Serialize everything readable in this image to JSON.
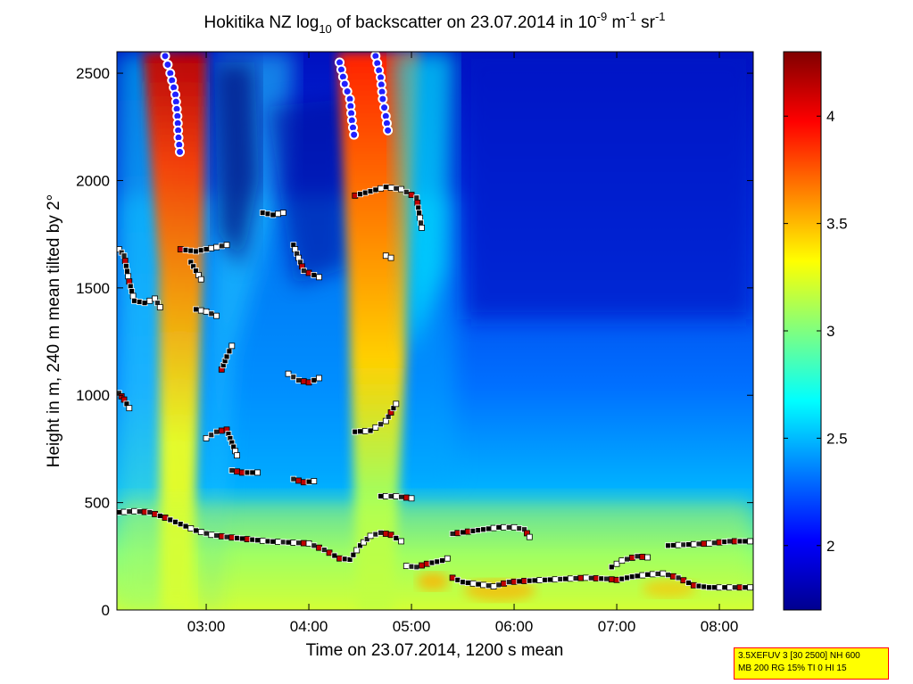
{
  "chart_data": {
    "type": "heatmap",
    "title": {
      "pre": "Hokitika NZ log",
      "sub": "10",
      "mid": " of backscatter on 23.07.2014 in 10",
      "sup1": "-9",
      "unit1": " m",
      "sup2": "-1",
      "unit2": " sr",
      "sup3": "-1"
    },
    "xlabel": "Time on 23.07.2014, 1200 s mean",
    "ylabel": "Height in m, 240 m mean tilted by 2°",
    "x_ticks": [
      "03:00",
      "04:00",
      "05:00",
      "06:00",
      "07:00",
      "08:00"
    ],
    "y_ticks": [
      "0",
      "500",
      "1000",
      "1500",
      "2000",
      "2500"
    ],
    "y_tick_values": [
      0,
      500,
      1000,
      1500,
      2000,
      2500
    ],
    "xlim_hours": [
      2.13,
      8.33
    ],
    "ylim": [
      0,
      2600
    ],
    "colorbar": {
      "range": [
        1.7,
        4.3
      ],
      "ticks": [
        "2",
        "2.5",
        "3",
        "3.5",
        "4"
      ],
      "tick_values": [
        2,
        2.5,
        3,
        3.5,
        4
      ],
      "colormap": "jet"
    },
    "layers": [
      {
        "name": "",
        "points": [
          [
            2.15,
            455
          ],
          [
            2.3,
            460
          ],
          [
            2.45,
            455
          ],
          [
            2.6,
            430
          ],
          [
            2.75,
            400
          ],
          [
            2.9,
            370
          ],
          [
            3.05,
            350
          ],
          [
            3.2,
            340
          ],
          [
            3.4,
            330
          ],
          [
            3.6,
            320
          ],
          [
            3.8,
            315
          ],
          [
            4.0,
            310
          ],
          [
            4.15,
            280
          ],
          [
            4.3,
            240
          ],
          [
            4.4,
            235
          ],
          [
            4.5,
            300
          ],
          [
            4.6,
            345
          ],
          [
            4.7,
            360
          ],
          [
            4.8,
            350
          ],
          [
            4.9,
            320
          ]
        ]
      },
      {
        "name": "",
        "points": [
          [
            4.95,
            205
          ],
          [
            5.05,
            200
          ],
          [
            5.15,
            215
          ],
          [
            5.3,
            230
          ],
          [
            5.35,
            240
          ]
        ]
      },
      {
        "name": "",
        "points": [
          [
            5.4,
            355
          ],
          [
            5.55,
            365
          ],
          [
            5.7,
            375
          ],
          [
            5.85,
            385
          ],
          [
            6.0,
            385
          ],
          [
            6.1,
            375
          ],
          [
            6.15,
            340
          ]
        ]
      },
      {
        "name": "",
        "points": [
          [
            5.4,
            150
          ],
          [
            5.5,
            130
          ],
          [
            5.65,
            120
          ],
          [
            5.8,
            110
          ],
          [
            5.95,
            130
          ],
          [
            6.1,
            135
          ],
          [
            6.3,
            140
          ],
          [
            6.5,
            145
          ],
          [
            6.7,
            150
          ],
          [
            6.9,
            145
          ],
          [
            7.0,
            140
          ],
          [
            7.15,
            155
          ],
          [
            7.3,
            165
          ],
          [
            7.45,
            170
          ],
          [
            7.6,
            150
          ],
          [
            7.75,
            115
          ],
          [
            7.9,
            105
          ],
          [
            8.05,
            105
          ],
          [
            8.3,
            105
          ]
        ]
      },
      {
        "name": "",
        "points": [
          [
            7.5,
            300
          ],
          [
            7.7,
            305
          ],
          [
            7.9,
            310
          ],
          [
            8.1,
            320
          ],
          [
            8.3,
            320
          ]
        ]
      },
      {
        "name": "",
        "points": [
          [
            6.95,
            200
          ],
          [
            7.05,
            230
          ],
          [
            7.2,
            250
          ],
          [
            7.3,
            245
          ]
        ]
      },
      {
        "name": "",
        "points": [
          [
            2.15,
            1680
          ],
          [
            2.2,
            1650
          ],
          [
            2.25,
            1530
          ],
          [
            2.3,
            1440
          ],
          [
            2.4,
            1430
          ],
          [
            2.5,
            1450
          ],
          [
            2.55,
            1410
          ]
        ]
      },
      {
        "name": "",
        "points": [
          [
            2.15,
            1010
          ],
          [
            2.2,
            980
          ],
          [
            2.25,
            940
          ]
        ]
      },
      {
        "name": "",
        "points": [
          [
            2.75,
            1680
          ],
          [
            2.9,
            1670
          ],
          [
            3.0,
            1680
          ],
          [
            3.1,
            1690
          ],
          [
            3.2,
            1700
          ]
        ]
      },
      {
        "name": "",
        "points": [
          [
            2.85,
            1620
          ],
          [
            2.9,
            1580
          ],
          [
            2.95,
            1540
          ]
        ]
      },
      {
        "name": "",
        "points": [
          [
            2.9,
            1400
          ],
          [
            3.0,
            1390
          ],
          [
            3.1,
            1370
          ]
        ]
      },
      {
        "name": "",
        "points": [
          [
            3.0,
            800
          ],
          [
            3.1,
            830
          ],
          [
            3.2,
            840
          ],
          [
            3.25,
            780
          ],
          [
            3.3,
            720
          ]
        ]
      },
      {
        "name": "",
        "points": [
          [
            3.25,
            650
          ],
          [
            3.35,
            640
          ],
          [
            3.5,
            640
          ]
        ]
      },
      {
        "name": "",
        "points": [
          [
            3.15,
            1120
          ],
          [
            3.2,
            1180
          ],
          [
            3.25,
            1230
          ]
        ]
      },
      {
        "name": "",
        "points": [
          [
            3.55,
            1850
          ],
          [
            3.65,
            1840
          ],
          [
            3.75,
            1850
          ]
        ]
      },
      {
        "name": "",
        "points": [
          [
            3.85,
            1700
          ],
          [
            3.9,
            1640
          ],
          [
            3.95,
            1580
          ],
          [
            4.1,
            1550
          ]
        ]
      },
      {
        "name": "",
        "points": [
          [
            3.8,
            1100
          ],
          [
            3.9,
            1070
          ],
          [
            4.0,
            1060
          ],
          [
            4.1,
            1080
          ]
        ]
      },
      {
        "name": "",
        "points": [
          [
            3.85,
            610
          ],
          [
            3.95,
            595
          ],
          [
            4.05,
            600
          ]
        ]
      },
      {
        "name": "",
        "points": [
          [
            4.45,
            1930
          ],
          [
            4.6,
            1950
          ],
          [
            4.75,
            1970
          ],
          [
            4.9,
            1960
          ],
          [
            5.05,
            1920
          ],
          [
            5.1,
            1780
          ]
        ]
      },
      {
        "name": "",
        "points": [
          [
            4.45,
            830
          ],
          [
            4.6,
            835
          ],
          [
            4.75,
            880
          ],
          [
            4.85,
            960
          ]
        ]
      },
      {
        "name": "",
        "points": [
          [
            4.7,
            530
          ],
          [
            4.85,
            530
          ],
          [
            5.0,
            520
          ]
        ]
      },
      {
        "name": "",
        "points": [
          [
            4.75,
            1650
          ],
          [
            4.8,
            1640
          ]
        ]
      }
    ],
    "cloud_tops": [
      {
        "name": "",
        "points": [
          [
            2.6,
            2580
          ],
          [
            2.65,
            2500
          ],
          [
            2.7,
            2400
          ],
          [
            2.72,
            2300
          ],
          [
            2.73,
            2200
          ],
          [
            2.75,
            2100
          ]
        ]
      },
      {
        "name": "",
        "points": [
          [
            4.3,
            2550
          ],
          [
            4.35,
            2450
          ],
          [
            4.4,
            2380
          ],
          [
            4.42,
            2280
          ],
          [
            4.45,
            2180
          ]
        ]
      },
      {
        "name": "",
        "points": [
          [
            4.65,
            2580
          ],
          [
            4.7,
            2480
          ],
          [
            4.72,
            2380
          ],
          [
            4.75,
            2300
          ],
          [
            4.78,
            2200
          ]
        ]
      }
    ]
  },
  "info_box": {
    "line1": "3.5XEFUV 3 [30 2500] NH 600",
    "line2": "MB 200 RG 15% TI 0 HI 15"
  }
}
